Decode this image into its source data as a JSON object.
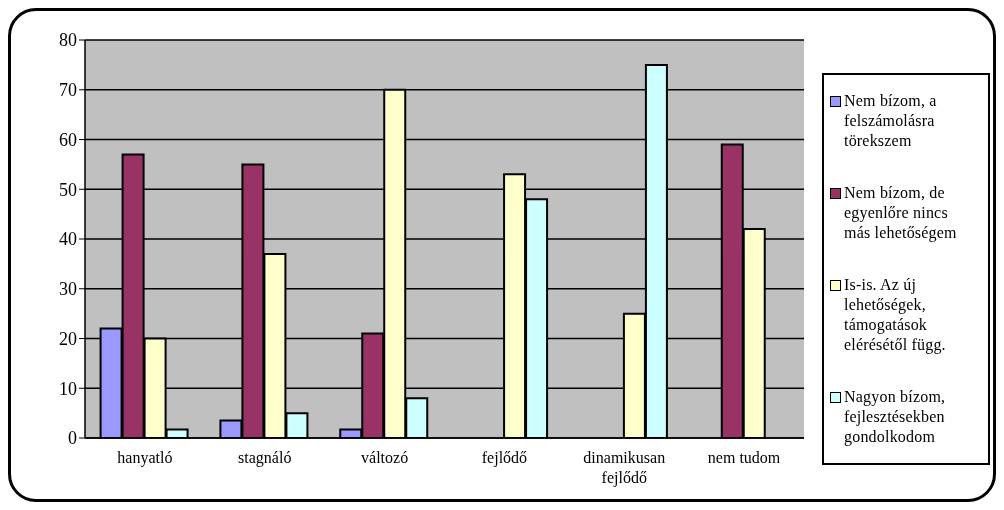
{
  "chart_data": {
    "type": "bar",
    "categories": [
      "hanyatló",
      "stagnáló",
      "változó",
      "fejlődő",
      "dinamikusan fejlődő",
      "nem tudom"
    ],
    "series": [
      {
        "name": "Nem bízom, a felszámolásra törekszem",
        "color": "#9999ff",
        "values": [
          22,
          3.5,
          1.7,
          null,
          null,
          null
        ]
      },
      {
        "name": "Nem bízom, de egyenlőre nincs más lehetőségem",
        "color": "#993366",
        "values": [
          57,
          55,
          21,
          null,
          null,
          59
        ]
      },
      {
        "name": "Is-is. Az új lehetőségek, támogatások elérésétől függ.",
        "color": "#ffffcc",
        "values": [
          20,
          37,
          70,
          53,
          25,
          42
        ]
      },
      {
        "name": "Nagyon bízom, fejlesztésekben gondolkodom",
        "color": "#ccffff",
        "values": [
          1.7,
          5,
          8,
          48,
          75,
          null
        ]
      }
    ],
    "ylim": [
      0,
      80
    ],
    "yticks": [
      0,
      10,
      20,
      30,
      40,
      50,
      60,
      70,
      80
    ],
    "grid": "y",
    "legend": "right"
  }
}
